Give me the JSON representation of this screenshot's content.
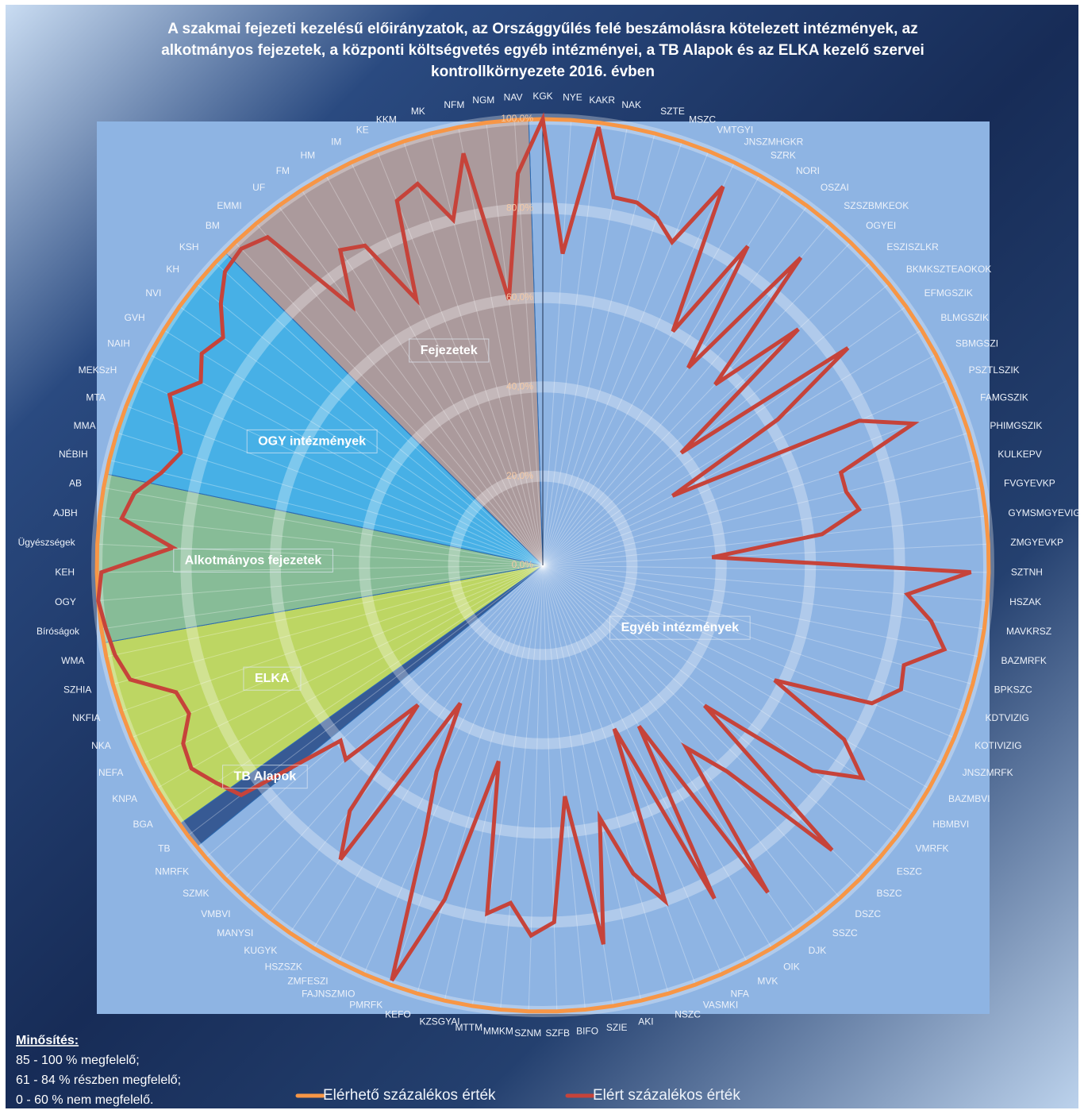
{
  "chart_data": {
    "type": "radar",
    "title": [
      "A szakmai fejezeti kezelésű előirányzatok, az Országgyűlés felé beszámolásra kötelezett intézmények, az",
      "alkotmányos fejezetek, a központi költségvetés egyéb intézményei, a TB Alapok és az ELKA kezelő szervei",
      "kontrollkörnyezete 2016. évben"
    ],
    "groups": [
      {
        "name": "Egyéb intézmények",
        "color": "#8eb4e3",
        "categories": [
          "KGK",
          "NYE",
          "KAKR",
          "NAK",
          "SZTE",
          "MSZC",
          "VMTGYI",
          "JNSZMHGKR",
          "SZRK",
          "NORI",
          "OSZAI",
          "SZSZBMKEOK",
          "OGYEI",
          "ESZISZLKR",
          "BKMKSZTEAOKOK",
          "EFMGSZIK",
          "BLMGSZIK",
          "SBMGSZI",
          "PSZTLSZIK",
          "FAMGSZIK",
          "PHIMGSZIK",
          "KULKEPV",
          "FVGYEVKP",
          "GYMSMGYEVIG",
          "ZMGYEVKP",
          "SZTNH",
          "HSZAK",
          "MAVKRSZ",
          "BAZMRFK",
          "BPKSZC",
          "KDTVIZIG",
          "KOTIVIZIG",
          "JNSZMRFK",
          "BAZMBVI",
          "HBMBVI",
          "VMRFK",
          "ESZC",
          "BSZC",
          "DSZC",
          "SSZC",
          "DJK",
          "OIK",
          "MVK",
          "NFA",
          "VASMKI",
          "NSZC",
          "AKI",
          "SZIE",
          "BIFO",
          "SZFB",
          "SZNM",
          "MMKM",
          "MTTM",
          "KZSGYAI",
          "KEFO",
          "PMRFK",
          "FAJNSZMIO",
          "ZMFESZI",
          "HSZSZK",
          "KUGYK",
          "MANYSI",
          "VMBVI",
          "SZMK",
          "NMRFK"
        ]
      },
      {
        "name": "TB Alapok",
        "color": "#284a86",
        "categories": [
          "TB"
        ]
      },
      {
        "name": "ELKA",
        "color": "#c6dc4c",
        "categories": [
          "BGA",
          "KNPA",
          "NEFA",
          "NKA",
          "NKFIA",
          "SZHIA",
          "WMA"
        ]
      },
      {
        "name": "Alkotmányos fejezetek",
        "color": "#86bd8a",
        "categories": [
          "Bíróságok",
          "OGY",
          "KEH",
          "Ügyészségek",
          "AJBH",
          "AB"
        ]
      },
      {
        "name": "OGY intézmények",
        "color": "#3bafe6",
        "categories": [
          "NÉBIH",
          "MMA",
          "MTA",
          "MEKSzH",
          "NAIH",
          "GVH",
          "NVI",
          "KH",
          "KSH"
        ]
      },
      {
        "name": "Fejezetek",
        "color": "#b0958f",
        "categories": [
          "BM",
          "EMMI",
          "UF",
          "FM",
          "HM",
          "IM",
          "KE",
          "KKM",
          "MK",
          "NFM",
          "NGM",
          "NAV"
        ]
      }
    ],
    "series": [
      {
        "name": "Elérhető százalékos érték",
        "color": "#f79646",
        "values": [
          100,
          100,
          100,
          100,
          100,
          100,
          100,
          100,
          100,
          100,
          100,
          100,
          100,
          100,
          100,
          100,
          100,
          100,
          100,
          100,
          100,
          100,
          100,
          100,
          100,
          100,
          100,
          100,
          100,
          100,
          100,
          100,
          100,
          100,
          100,
          100,
          100,
          100,
          100,
          100,
          100,
          100,
          100,
          100,
          100,
          100,
          100,
          100,
          100,
          100,
          100,
          100,
          100,
          100,
          100,
          100,
          100,
          100,
          100,
          100,
          100,
          100,
          100,
          100,
          100,
          100,
          100,
          100,
          100,
          100,
          100,
          100,
          100,
          100,
          100,
          100,
          100,
          100,
          100,
          100,
          100,
          100,
          100,
          100,
          100,
          100,
          100,
          100,
          100,
          100,
          100,
          100,
          100,
          100,
          100,
          100,
          100,
          100,
          100
        ]
      },
      {
        "name": "Elért százalékos érték",
        "color": "#c6433a",
        "values": [
          100,
          70,
          99,
          84,
          84,
          82,
          78,
          94,
          60,
          85,
          55,
          90,
          56,
          78,
          40,
          84,
          62,
          33,
          78,
          89,
          70,
          70,
          72,
          63,
          38,
          96,
          82,
          88,
          92,
          84,
          85,
          80,
          58,
          78,
          86,
          76,
          48,
          91,
          62,
          52,
          89,
          42,
          84,
          40,
          80,
          72,
          58,
          86,
          52,
          80,
          83,
          76,
          79,
          45,
          78,
          99,
          66,
          52,
          36,
          80,
          70,
          42,
          62,
          60,
          85,
          88,
          91,
          90,
          86,
          87,
          96,
          98,
          99,
          100,
          99,
          83,
          95,
          93,
          88,
          85,
          88,
          92,
          87,
          90,
          88,
          93,
          97,
          98,
          96,
          72,
          84,
          82,
          66,
          88,
          90,
          80,
          94,
          60,
          88
        ]
      }
    ],
    "ylim": [
      0,
      100
    ],
    "yticks": [
      {
        "value": 0,
        "label": "0,0%"
      },
      {
        "value": 20,
        "label": "20,0%"
      },
      {
        "value": 40,
        "label": "40,0%"
      },
      {
        "value": 60,
        "label": "60,0%"
      },
      {
        "value": 80,
        "label": "80,0%"
      },
      {
        "value": 100,
        "label": "100,0%"
      }
    ],
    "grid": true,
    "legend": "bottom",
    "note": {
      "heading": "Minősítés:",
      "lines": [
        "85 - 100 % megfelelő;",
        "61 - 84 % részben megfelelő;",
        "0 - 60 % nem megfelelő."
      ]
    }
  }
}
